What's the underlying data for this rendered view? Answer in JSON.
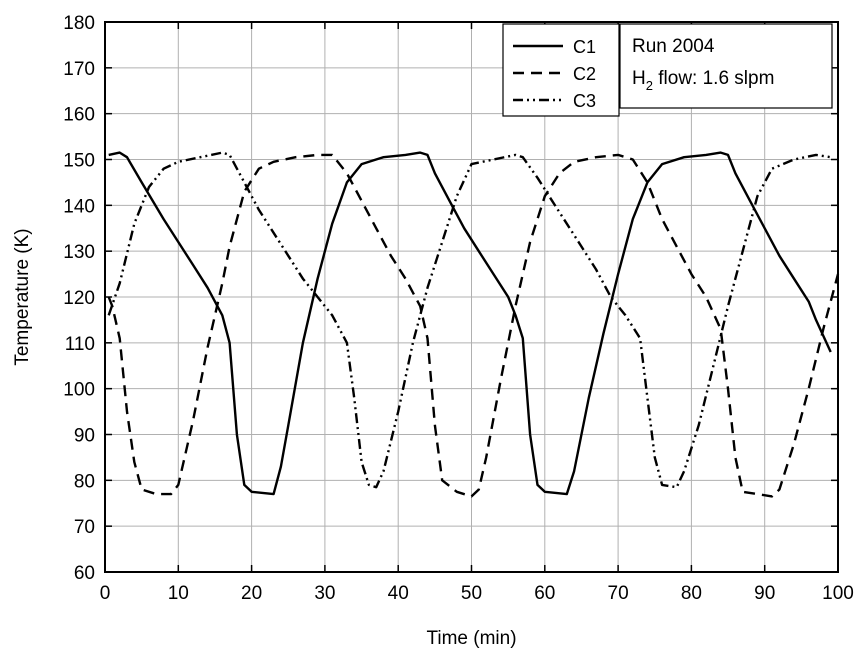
{
  "chart_data": {
    "type": "line",
    "xlabel": "Time (min)",
    "ylabel": "Temperature (K)",
    "xlim": [
      0,
      100
    ],
    "ylim": [
      60,
      180
    ],
    "x_ticks": [
      0,
      10,
      20,
      30,
      40,
      50,
      60,
      70,
      80,
      90,
      100
    ],
    "y_ticks": [
      60,
      70,
      80,
      90,
      100,
      110,
      120,
      130,
      140,
      150,
      160,
      170,
      180
    ],
    "grid": true,
    "legend_position": "top-right",
    "annotation": {
      "line1": "Run 2004",
      "line2_prefix": "H",
      "line2_subscript": "2",
      "line2_suffix": " flow: 1.6 slpm"
    },
    "series": [
      {
        "name": "C1",
        "dash": "solid",
        "points": [
          [
            0.5,
            151
          ],
          [
            2,
            151.5
          ],
          [
            3,
            150.5
          ],
          [
            5,
            145
          ],
          [
            8,
            137
          ],
          [
            10,
            132
          ],
          [
            12,
            127
          ],
          [
            14,
            122
          ],
          [
            16,
            116
          ],
          [
            17,
            110
          ],
          [
            18,
            90
          ],
          [
            19,
            79
          ],
          [
            20,
            77.5
          ],
          [
            23,
            77
          ],
          [
            24,
            83
          ],
          [
            25,
            92
          ],
          [
            27,
            110
          ],
          [
            29,
            124
          ],
          [
            31,
            136
          ],
          [
            33,
            145
          ],
          [
            35,
            149
          ],
          [
            38,
            150.5
          ],
          [
            41,
            151
          ],
          [
            43,
            151.5
          ],
          [
            44,
            151
          ],
          [
            45,
            147
          ],
          [
            47,
            141
          ],
          [
            49,
            135
          ],
          [
            51,
            130
          ],
          [
            53,
            125
          ],
          [
            55,
            120
          ],
          [
            56,
            116
          ],
          [
            57,
            111
          ],
          [
            58,
            90
          ],
          [
            59,
            79
          ],
          [
            60,
            77.5
          ],
          [
            63,
            77
          ],
          [
            64,
            82
          ],
          [
            66,
            98
          ],
          [
            68,
            112
          ],
          [
            70,
            125
          ],
          [
            72,
            137
          ],
          [
            74,
            145
          ],
          [
            76,
            149
          ],
          [
            79,
            150.5
          ],
          [
            82,
            151
          ],
          [
            84,
            151.5
          ],
          [
            85,
            151
          ],
          [
            86,
            147
          ],
          [
            88,
            141
          ],
          [
            90,
            135
          ],
          [
            92,
            129
          ],
          [
            94,
            124
          ],
          [
            96,
            119
          ],
          [
            97,
            115
          ],
          [
            99,
            108
          ]
        ]
      },
      {
        "name": "C2",
        "dash": "dashed",
        "points": [
          [
            0.5,
            120
          ],
          [
            1,
            118
          ],
          [
            2,
            111
          ],
          [
            3,
            95
          ],
          [
            4,
            84
          ],
          [
            5,
            78
          ],
          [
            7,
            77
          ],
          [
            9,
            77
          ],
          [
            10,
            79
          ],
          [
            12,
            93
          ],
          [
            14,
            109
          ],
          [
            16,
            123
          ],
          [
            17,
            131
          ],
          [
            19,
            143
          ],
          [
            21,
            148
          ],
          [
            23,
            149.5
          ],
          [
            26,
            150.5
          ],
          [
            29,
            151
          ],
          [
            31,
            151
          ],
          [
            33,
            147
          ],
          [
            35,
            141
          ],
          [
            37,
            135
          ],
          [
            39,
            129
          ],
          [
            41,
            124
          ],
          [
            43,
            118
          ],
          [
            44,
            111
          ],
          [
            45,
            92
          ],
          [
            46,
            80
          ],
          [
            48,
            77.5
          ],
          [
            50,
            76.5
          ],
          [
            51,
            78
          ],
          [
            52,
            85
          ],
          [
            54,
            102
          ],
          [
            56,
            118
          ],
          [
            58,
            132
          ],
          [
            60,
            142
          ],
          [
            62,
            147
          ],
          [
            64,
            149.5
          ],
          [
            67,
            150.5
          ],
          [
            70,
            151
          ],
          [
            72,
            150
          ],
          [
            74,
            145
          ],
          [
            76,
            137
          ],
          [
            78,
            131
          ],
          [
            80,
            125
          ],
          [
            82,
            120
          ],
          [
            84,
            113
          ],
          [
            85,
            100
          ],
          [
            86,
            85
          ],
          [
            87,
            77.5
          ],
          [
            89,
            77
          ],
          [
            91,
            76.5
          ],
          [
            92,
            78
          ],
          [
            94,
            88
          ],
          [
            96,
            100
          ],
          [
            98,
            113
          ],
          [
            100,
            125
          ]
        ]
      },
      {
        "name": "C3",
        "dash": "dash-dot-dot",
        "points": [
          [
            0.5,
            116
          ],
          [
            2,
            123
          ],
          [
            4,
            136
          ],
          [
            6,
            144
          ],
          [
            8,
            148
          ],
          [
            10,
            149.5
          ],
          [
            13,
            150.5
          ],
          [
            16,
            151.5
          ],
          [
            17,
            151
          ],
          [
            19,
            145
          ],
          [
            21,
            139
          ],
          [
            23,
            134
          ],
          [
            25,
            129
          ],
          [
            27,
            124
          ],
          [
            29,
            120
          ],
          [
            31,
            116
          ],
          [
            33,
            110
          ],
          [
            34,
            98
          ],
          [
            35,
            84
          ],
          [
            36,
            79
          ],
          [
            37,
            78.5
          ],
          [
            38,
            82
          ],
          [
            40,
            95
          ],
          [
            42,
            110
          ],
          [
            44,
            122
          ],
          [
            46,
            132
          ],
          [
            48,
            142
          ],
          [
            50,
            149
          ],
          [
            53,
            150
          ],
          [
            56,
            151
          ],
          [
            57,
            150.5
          ],
          [
            59,
            146
          ],
          [
            61,
            141
          ],
          [
            63,
            136
          ],
          [
            65,
            131
          ],
          [
            67,
            126
          ],
          [
            69,
            120
          ],
          [
            71,
            116
          ],
          [
            73,
            111
          ],
          [
            74,
            98
          ],
          [
            75,
            85
          ],
          [
            76,
            79
          ],
          [
            78,
            78.5
          ],
          [
            79,
            82
          ],
          [
            81,
            92
          ],
          [
            83,
            105
          ],
          [
            85,
            118
          ],
          [
            87,
            130
          ],
          [
            89,
            142
          ],
          [
            91,
            148
          ],
          [
            94,
            150
          ],
          [
            97,
            151
          ],
          [
            99,
            150.5
          ]
        ]
      }
    ]
  }
}
